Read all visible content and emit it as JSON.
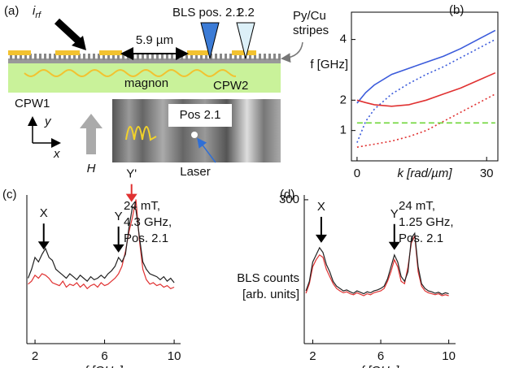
{
  "panel_a": {
    "label": "(a)",
    "current": "i",
    "current_sub": "rf",
    "distance": "5.9 µm",
    "bls_pos_1": "BLS pos. 2.1",
    "bls_pos_2": "2.2",
    "stripes": [
      "Py/Cu",
      "stripes"
    ],
    "magnon": "magnon",
    "cpw1": "CPW1",
    "cpw2": "CPW2",
    "axis_y": "y",
    "axis_x": "x",
    "field": "H",
    "inset_label": "Pos 2.1",
    "laser": "Laser"
  },
  "chart_data": [
    {
      "type": "line",
      "label": "(b)",
      "ylabel": "f [GHz]",
      "xlabel": "k [rad/µm]",
      "frame": "box",
      "x": [
        0,
        2,
        4,
        8,
        12,
        16,
        20,
        24,
        28,
        32
      ],
      "xlim": [
        -1.3,
        32.6
      ],
      "xticks": [
        0,
        30
      ],
      "ylim": [
        0,
        4.9
      ],
      "yticks": [
        1,
        2,
        4
      ],
      "series": [
        {
          "color": "#3b5bdb",
          "style": "solid",
          "values": [
            1.9,
            2.25,
            2.5,
            2.85,
            3.05,
            3.25,
            3.45,
            3.7,
            4.0,
            4.3
          ]
        },
        {
          "color": "#3b5bdb",
          "style": "dotted",
          "values": [
            0.6,
            1.3,
            1.7,
            2.2,
            2.55,
            2.85,
            3.1,
            3.4,
            3.7,
            4.0
          ]
        },
        {
          "color": "#e03131",
          "style": "solid",
          "values": [
            2.0,
            1.92,
            1.85,
            1.8,
            1.85,
            2.0,
            2.2,
            2.4,
            2.65,
            2.9
          ]
        },
        {
          "color": "#e03131",
          "style": "dotted",
          "values": [
            0.45,
            0.5,
            0.55,
            0.65,
            0.8,
            1.0,
            1.3,
            1.6,
            1.9,
            2.2
          ]
        },
        {
          "color": "#6fd63a",
          "style": "dashed",
          "values": [
            1.25,
            1.25,
            1.25,
            1.25,
            1.25,
            1.25,
            1.25,
            1.25,
            1.25,
            1.25
          ]
        }
      ]
    },
    {
      "type": "line",
      "label": "(c)",
      "xlabel": "f [GHz]",
      "frame": "axes",
      "note": [
        "24 mT,",
        "4.3 GHz,",
        "Pos. 2.1"
      ],
      "annotations": [
        {
          "text": "X",
          "x": 2.5,
          "color": "#000000"
        },
        {
          "text": "Y",
          "x": 6.8,
          "color": "#000000"
        },
        {
          "text": "Y'",
          "x": 7.55,
          "color": "#e03131"
        }
      ],
      "x": [
        1.6,
        1.8,
        2.0,
        2.2,
        2.4,
        2.6,
        2.8,
        3.0,
        3.2,
        3.4,
        3.6,
        3.8,
        4.0,
        4.2,
        4.4,
        4.6,
        4.8,
        5.0,
        5.2,
        5.4,
        5.6,
        5.8,
        6.0,
        6.2,
        6.4,
        6.6,
        6.8,
        7.0,
        7.2,
        7.4,
        7.6,
        7.8,
        8.0,
        8.2,
        8.4,
        8.6,
        8.8,
        9.0,
        9.2,
        9.4,
        9.6,
        9.8,
        10.0
      ],
      "xlim": [
        1.53,
        10.37
      ],
      "xticks": [
        2,
        6,
        10
      ],
      "ylim": [
        0,
        100
      ],
      "series": [
        {
          "color": "#e03131",
          "values": [
            40,
            42,
            46,
            44,
            47,
            46,
            44,
            41,
            40,
            39,
            42,
            38,
            40,
            39,
            41,
            38,
            40,
            37,
            39,
            40,
            38,
            41,
            39,
            40,
            42,
            44,
            47,
            52,
            62,
            75,
            85,
            97,
            70,
            50,
            43,
            40,
            41,
            39,
            40,
            38,
            39,
            37,
            38
          ]
        },
        {
          "color": "#222222",
          "values": [
            44,
            50,
            58,
            55,
            60,
            64,
            58,
            56,
            50,
            48,
            46,
            44,
            47,
            45,
            43,
            46,
            44,
            42,
            45,
            43,
            44,
            46,
            44,
            47,
            49,
            52,
            58,
            55,
            60,
            78,
            92,
            90,
            72,
            55,
            50,
            47,
            46,
            45,
            43,
            45,
            42,
            44,
            41
          ]
        }
      ]
    },
    {
      "type": "line",
      "label": "(d)",
      "xlabel": "f [GHz]",
      "ylabel": [
        "BLS counts",
        "[arb. units]"
      ],
      "frame": "axes",
      "note": [
        "24 mT,",
        "1.25 GHz,",
        "Pos. 2.1"
      ],
      "annotations": [
        {
          "text": "X",
          "x": 2.5,
          "color": "#000000"
        },
        {
          "text": "Y",
          "x": 6.8,
          "color": "#000000"
        }
      ],
      "x": [
        1.6,
        1.8,
        2.0,
        2.2,
        2.4,
        2.6,
        2.8,
        3.0,
        3.2,
        3.4,
        3.6,
        3.8,
        4.0,
        4.2,
        4.4,
        4.6,
        4.8,
        5.0,
        5.2,
        5.4,
        5.6,
        5.8,
        6.0,
        6.2,
        6.4,
        6.6,
        6.8,
        7.0,
        7.2,
        7.4,
        7.6,
        7.8,
        8.0,
        8.2,
        8.4,
        8.6,
        8.8,
        9.0,
        9.2,
        9.4,
        9.6,
        9.8,
        10.0
      ],
      "xlim": [
        1.5,
        10.4
      ],
      "xticks": [
        2,
        6,
        10
      ],
      "ylim": [
        0,
        310
      ],
      "yticks": [
        300
      ],
      "series": [
        {
          "color": "#e03131",
          "values": [
            105,
            125,
            160,
            175,
            185,
            180,
            155,
            140,
            125,
            115,
            110,
            106,
            108,
            104,
            102,
            106,
            103,
            100,
            104,
            102,
            106,
            108,
            110,
            115,
            130,
            150,
            175,
            160,
            130,
            125,
            160,
            210,
            225,
            150,
            120,
            110,
            106,
            104,
            102,
            104,
            100,
            102,
            100
          ]
        },
        {
          "color": "#222222",
          "values": [
            110,
            130,
            170,
            185,
            200,
            190,
            165,
            150,
            130,
            120,
            115,
            110,
            112,
            108,
            105,
            110,
            107,
            104,
            108,
            106,
            110,
            112,
            115,
            120,
            135,
            160,
            185,
            170,
            140,
            130,
            150,
            220,
            230,
            160,
            125,
            115,
            110,
            108,
            105,
            107,
            103,
            106,
            104
          ]
        }
      ]
    }
  ]
}
